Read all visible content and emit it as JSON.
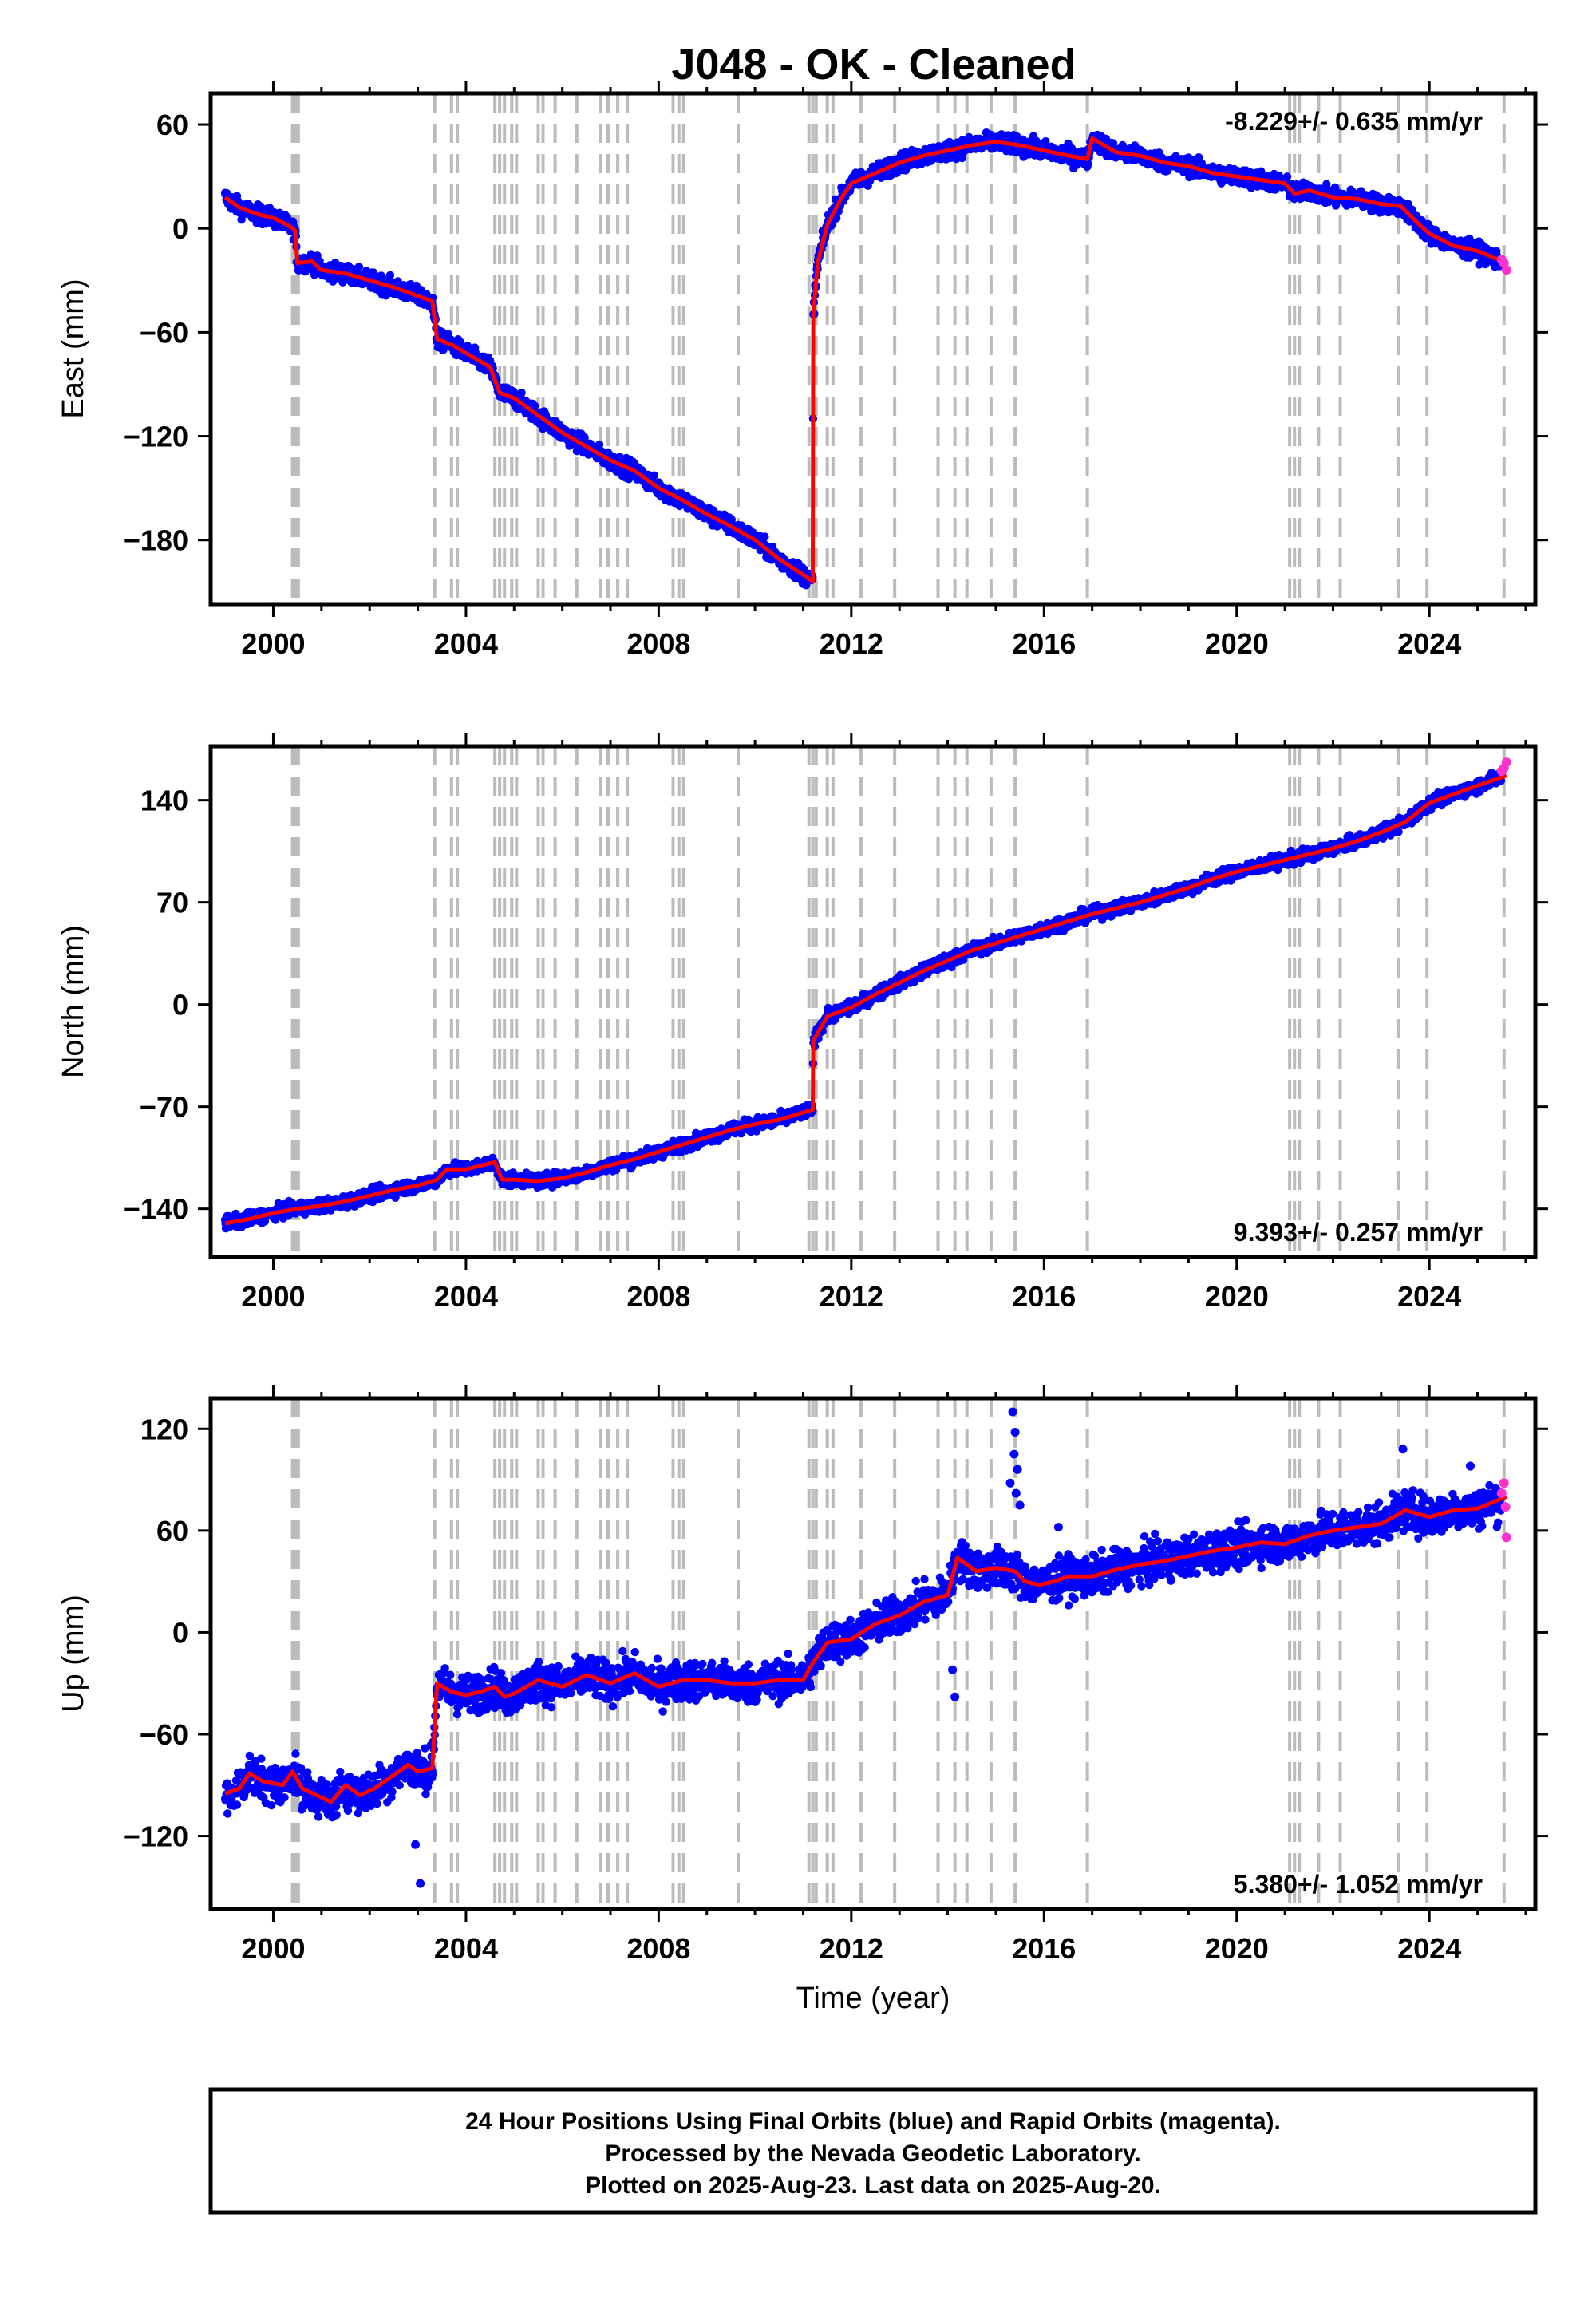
{
  "title": "J048  - OK - Cleaned",
  "colors": {
    "final": "#0000ff",
    "rapid": "#ff33cc",
    "model": "#ff0000",
    "break": "#bbbbbb"
  },
  "footer": {
    "line1": "24 Hour Positions Using Final Orbits (blue) and Rapid Orbits (magenta).",
    "line2": "Processed by the Nevada Geodetic Laboratory.",
    "line3": "Plotted on 2025-Aug-23. Last data on 2025-Aug-20."
  },
  "chart_data": [
    {
      "type": "scatter",
      "ylabel": "East (mm)",
      "xlabel": "",
      "rate_label": "-8.229+/- 0.635 mm/yr",
      "rate_position": "top-right",
      "xlim": [
        1998.7,
        2026.2
      ],
      "ylim": [
        -217,
        78
      ],
      "xticks": [
        2000,
        2004,
        2008,
        2012,
        2016,
        2020,
        2024
      ],
      "yticks": [
        60,
        0,
        -60,
        -120,
        -180
      ],
      "noise": 3.5,
      "model": [
        [
          1999.0,
          18
        ],
        [
          1999.3,
          12
        ],
        [
          1999.7,
          8
        ],
        [
          2000.0,
          6
        ],
        [
          2000.3,
          2
        ],
        [
          2000.45,
          -1
        ],
        [
          2000.5,
          -20
        ],
        [
          2000.8,
          -19
        ],
        [
          2001.0,
          -24
        ],
        [
          2001.5,
          -26
        ],
        [
          2002.0,
          -30
        ],
        [
          2002.5,
          -34
        ],
        [
          2002.9,
          -38
        ],
        [
          2003.3,
          -42
        ],
        [
          2003.4,
          -64
        ],
        [
          2003.7,
          -67
        ],
        [
          2004.0,
          -72
        ],
        [
          2004.5,
          -80
        ],
        [
          2004.7,
          -95
        ],
        [
          2005.0,
          -98
        ],
        [
          2005.5,
          -108
        ],
        [
          2006.0,
          -118
        ],
        [
          2006.5,
          -126
        ],
        [
          2007.0,
          -134
        ],
        [
          2007.5,
          -140
        ],
        [
          2008.0,
          -150
        ],
        [
          2008.5,
          -157
        ],
        [
          2009.0,
          -165
        ],
        [
          2009.5,
          -172
        ],
        [
          2010.0,
          -180
        ],
        [
          2010.5,
          -191
        ],
        [
          2011.0,
          -200
        ],
        [
          2011.2,
          -204
        ],
        [
          2011.21,
          -50
        ],
        [
          2011.3,
          -20
        ],
        [
          2011.5,
          2
        ],
        [
          2011.8,
          18
        ],
        [
          2012.0,
          26
        ],
        [
          2012.5,
          32
        ],
        [
          2013.0,
          38
        ],
        [
          2013.5,
          42
        ],
        [
          2014.0,
          45
        ],
        [
          2014.5,
          48
        ],
        [
          2015.0,
          50
        ],
        [
          2015.5,
          48
        ],
        [
          2016.0,
          45
        ],
        [
          2016.5,
          42
        ],
        [
          2016.9,
          40
        ],
        [
          2017.0,
          52
        ],
        [
          2017.5,
          44
        ],
        [
          2018.0,
          42
        ],
        [
          2018.5,
          38
        ],
        [
          2019.0,
          36
        ],
        [
          2019.5,
          32
        ],
        [
          2020.0,
          30
        ],
        [
          2020.5,
          28
        ],
        [
          2021.0,
          26
        ],
        [
          2021.2,
          20
        ],
        [
          2021.5,
          22
        ],
        [
          2022.0,
          18
        ],
        [
          2022.5,
          17
        ],
        [
          2023.0,
          14
        ],
        [
          2023.4,
          13
        ],
        [
          2023.8,
          2
        ],
        [
          2024.0,
          -3
        ],
        [
          2024.5,
          -10
        ],
        [
          2025.0,
          -13
        ],
        [
          2025.6,
          -20
        ]
      ],
      "spikes": [],
      "rapid": [
        [
          2025.5,
          -18
        ],
        [
          2025.55,
          -20
        ],
        [
          2025.6,
          -24
        ]
      ]
    },
    {
      "type": "scatter",
      "ylabel": "North (mm)",
      "xlabel": "",
      "rate_label": "9.393+/- 0.257 mm/yr",
      "rate_position": "bottom-right",
      "xlim": [
        1998.7,
        2026.2
      ],
      "ylim": [
        -173,
        177
      ],
      "xticks": [
        2000,
        2004,
        2008,
        2012,
        2016,
        2020,
        2024
      ],
      "yticks": [
        140,
        70,
        0,
        -70,
        -140
      ],
      "noise": 3.0,
      "model": [
        [
          1999.0,
          -150
        ],
        [
          1999.5,
          -147
        ],
        [
          2000.0,
          -143
        ],
        [
          2000.5,
          -140
        ],
        [
          2001.0,
          -138
        ],
        [
          2001.5,
          -135
        ],
        [
          2002.0,
          -131
        ],
        [
          2002.5,
          -127
        ],
        [
          2003.0,
          -124
        ],
        [
          2003.4,
          -120
        ],
        [
          2003.6,
          -113
        ],
        [
          2004.0,
          -113
        ],
        [
          2004.6,
          -108
        ],
        [
          2004.75,
          -120
        ],
        [
          2005.0,
          -120
        ],
        [
          2005.5,
          -121
        ],
        [
          2006.0,
          -119
        ],
        [
          2006.5,
          -115
        ],
        [
          2007.0,
          -110
        ],
        [
          2007.5,
          -106
        ],
        [
          2008.0,
          -101
        ],
        [
          2008.5,
          -96
        ],
        [
          2009.0,
          -91
        ],
        [
          2009.5,
          -86
        ],
        [
          2010.0,
          -82
        ],
        [
          2010.5,
          -79
        ],
        [
          2011.0,
          -74
        ],
        [
          2011.2,
          -72
        ],
        [
          2011.21,
          -25
        ],
        [
          2011.5,
          -8
        ],
        [
          2012.0,
          -2
        ],
        [
          2012.5,
          7
        ],
        [
          2013.0,
          15
        ],
        [
          2013.5,
          23
        ],
        [
          2014.0,
          30
        ],
        [
          2014.5,
          37
        ],
        [
          2015.0,
          42
        ],
        [
          2015.5,
          47
        ],
        [
          2016.0,
          52
        ],
        [
          2016.5,
          57
        ],
        [
          2017.0,
          62
        ],
        [
          2017.5,
          66
        ],
        [
          2018.0,
          70
        ],
        [
          2018.5,
          75
        ],
        [
          2019.0,
          80
        ],
        [
          2019.5,
          86
        ],
        [
          2020.0,
          91
        ],
        [
          2020.5,
          95
        ],
        [
          2021.0,
          99
        ],
        [
          2021.5,
          103
        ],
        [
          2022.0,
          107
        ],
        [
          2022.5,
          112
        ],
        [
          2023.0,
          118
        ],
        [
          2023.5,
          125
        ],
        [
          2024.0,
          138
        ],
        [
          2024.5,
          144
        ],
        [
          2025.0,
          150
        ],
        [
          2025.6,
          157
        ]
      ],
      "spikes": [],
      "rapid": [
        [
          2025.5,
          160
        ],
        [
          2025.55,
          162
        ],
        [
          2025.6,
          166
        ]
      ]
    },
    {
      "type": "scatter",
      "ylabel": "Up (mm)",
      "xlabel": "Time (year)",
      "rate_label": "5.380+/- 1.052 mm/yr",
      "rate_position": "bottom-right",
      "xlim": [
        1998.7,
        2026.2
      ],
      "ylim": [
        -163,
        138
      ],
      "xticks": [
        2000,
        2004,
        2008,
        2012,
        2016,
        2020,
        2024
      ],
      "yticks": [
        120,
        60,
        0,
        -60,
        -120
      ],
      "noise": 8.0,
      "model": [
        [
          1999.0,
          -95
        ],
        [
          1999.3,
          -92
        ],
        [
          1999.5,
          -83
        ],
        [
          1999.8,
          -88
        ],
        [
          2000.2,
          -90
        ],
        [
          2000.4,
          -82
        ],
        [
          2000.6,
          -92
        ],
        [
          2000.9,
          -96
        ],
        [
          2001.2,
          -100
        ],
        [
          2001.5,
          -90
        ],
        [
          2001.8,
          -96
        ],
        [
          2002.1,
          -92
        ],
        [
          2002.4,
          -86
        ],
        [
          2002.6,
          -82
        ],
        [
          2002.8,
          -78
        ],
        [
          2003.0,
          -82
        ],
        [
          2003.3,
          -80
        ],
        [
          2003.4,
          -30
        ],
        [
          2003.7,
          -35
        ],
        [
          2004.0,
          -37
        ],
        [
          2004.3,
          -35
        ],
        [
          2004.6,
          -32
        ],
        [
          2004.8,
          -38
        ],
        [
          2005.0,
          -36
        ],
        [
          2005.5,
          -28
        ],
        [
          2006.0,
          -32
        ],
        [
          2006.5,
          -25
        ],
        [
          2007.0,
          -30
        ],
        [
          2007.5,
          -24
        ],
        [
          2008.0,
          -32
        ],
        [
          2008.5,
          -28
        ],
        [
          2009.0,
          -28
        ],
        [
          2009.5,
          -30
        ],
        [
          2010.0,
          -30
        ],
        [
          2010.5,
          -28
        ],
        [
          2011.0,
          -28
        ],
        [
          2011.2,
          -18
        ],
        [
          2011.5,
          -6
        ],
        [
          2012.0,
          -4
        ],
        [
          2012.5,
          5
        ],
        [
          2013.0,
          10
        ],
        [
          2013.5,
          18
        ],
        [
          2014.0,
          22
        ],
        [
          2014.2,
          44
        ],
        [
          2014.6,
          36
        ],
        [
          2015.0,
          38
        ],
        [
          2015.4,
          36
        ],
        [
          2015.6,
          30
        ],
        [
          2015.9,
          28
        ],
        [
          2016.2,
          30
        ],
        [
          2016.5,
          33
        ],
        [
          2017.0,
          33
        ],
        [
          2017.5,
          37
        ],
        [
          2018.0,
          40
        ],
        [
          2018.5,
          42
        ],
        [
          2019.0,
          45
        ],
        [
          2019.5,
          48
        ],
        [
          2020.0,
          50
        ],
        [
          2020.5,
          53
        ],
        [
          2021.0,
          52
        ],
        [
          2021.5,
          57
        ],
        [
          2022.0,
          60
        ],
        [
          2022.5,
          62
        ],
        [
          2023.0,
          64
        ],
        [
          2023.5,
          72
        ],
        [
          2024.0,
          68
        ],
        [
          2024.5,
          72
        ],
        [
          2025.0,
          73
        ],
        [
          2025.6,
          80
        ]
      ],
      "spikes": [
        [
          2015.35,
          130
        ],
        [
          2015.4,
          118
        ],
        [
          2015.38,
          105
        ],
        [
          2015.45,
          96
        ],
        [
          2015.3,
          88
        ],
        [
          2015.42,
          82
        ],
        [
          2015.5,
          75
        ],
        [
          2014.1,
          -22
        ],
        [
          2014.15,
          -38
        ],
        [
          2003.05,
          -148
        ],
        [
          2002.95,
          -125
        ],
        [
          2016.3,
          62
        ],
        [
          2023.45,
          108
        ],
        [
          2024.85,
          98
        ]
      ],
      "rapid": [
        [
          2025.5,
          82
        ],
        [
          2025.55,
          88
        ],
        [
          2025.6,
          56
        ],
        [
          2025.58,
          74
        ]
      ]
    }
  ],
  "breaks": [
    2000.4,
    2000.46,
    2000.52,
    2003.35,
    2003.7,
    2003.82,
    2004.6,
    2004.7,
    2004.8,
    2004.95,
    2005.05,
    2005.5,
    2005.6,
    2005.85,
    2006.3,
    2006.8,
    2006.95,
    2007.15,
    2007.35,
    2008.3,
    2008.42,
    2008.52,
    2009.65,
    2011.12,
    2011.2,
    2011.27,
    2011.5,
    2011.62,
    2012.2,
    2012.9,
    2013.8,
    2014.15,
    2014.4,
    2014.9,
    2015.4,
    2016.9,
    2021.1,
    2021.2,
    2021.3,
    2021.7,
    2022.15,
    2023.35,
    2023.95,
    2025.55
  ]
}
